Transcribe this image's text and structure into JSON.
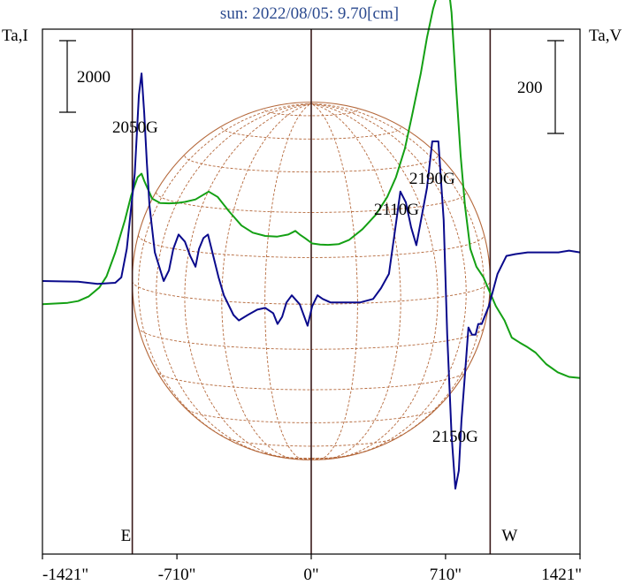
{
  "chart_data": {
    "type": "line",
    "title": "sun: 2022/08/05: 9.70[cm]",
    "ylabel_left": "Ta,I",
    "ylabel_right": "Ta,V",
    "scale_left": "2000",
    "scale_right": "200",
    "xlim": [
      -1421,
      1421
    ],
    "x_ticks": [
      "-1421\"",
      "-710\"",
      "0\"",
      "710\"",
      "1421\""
    ],
    "x_tick_values": [
      -1421,
      -710,
      0,
      710,
      1421
    ],
    "limb_markers": [
      {
        "label": "E",
        "x": -946
      },
      {
        "label": "W",
        "x": 946
      }
    ],
    "solar_radius": 946,
    "annotations": [
      {
        "text": "2050G",
        "x": -897,
        "series": "I"
      },
      {
        "text": "2110G",
        "x": 470,
        "series": "V"
      },
      {
        "text": "2190G",
        "x": 633,
        "series": "V"
      },
      {
        "text": "2150G",
        "x": 787,
        "series": "V"
      }
    ],
    "series": [
      {
        "color": "#14a014",
        "x": [
          -1421,
          -1288,
          -1232,
          -1176,
          -1120,
          -1082,
          -1036,
          -985,
          -951,
          -918,
          -897,
          -883,
          -841,
          -799,
          -752,
          -710,
          -668,
          -612,
          -542,
          -495,
          -435,
          -369,
          -309,
          -243,
          -182,
          -121,
          -84,
          -61,
          -33,
          5,
          47,
          89,
          145,
          201,
          271,
          341,
          402,
          448,
          495,
          532,
          579,
          612,
          644,
          672,
          700,
          719,
          742,
          766,
          790,
          813,
          841,
          873,
          911,
          939,
          976,
          1022,
          1060,
          1102,
          1144,
          1186,
          1242,
          1303,
          1363,
          1421
        ],
        "y": [
          -650,
          -610,
          -560,
          -430,
          -180,
          130,
          800,
          1700,
          2400,
          2900,
          3000,
          2800,
          2300,
          2180,
          2170,
          2180,
          2210,
          2280,
          2500,
          2350,
          1950,
          1550,
          1350,
          1260,
          1240,
          1300,
          1400,
          1300,
          1200,
          1050,
          1020,
          1010,
          1030,
          1150,
          1450,
          1850,
          2350,
          2900,
          3700,
          4600,
          5800,
          6800,
          7600,
          8100,
          8600,
          8550,
          7500,
          5400,
          3500,
          2100,
          900,
          400,
          100,
          -250,
          -700,
          -1100,
          -1580,
          -1720,
          -1850,
          -2000,
          -2320,
          -2550,
          -2680,
          -2710
        ]
      },
      {
        "color": "#0a0a8c",
        "x": [
          -1421,
          -1232,
          -1130,
          -1036,
          -1004,
          -975,
          -933,
          -911,
          -897,
          -883,
          -869,
          -855,
          -827,
          -780,
          -752,
          -729,
          -701,
          -668,
          -640,
          -612,
          -593,
          -570,
          -546,
          -518,
          -490,
          -462,
          -411,
          -383,
          -336,
          -285,
          -243,
          -201,
          -178,
          -154,
          -131,
          -103,
          -61,
          -19,
          5,
          33,
          61,
          103,
          145,
          201,
          257,
          327,
          369,
          411,
          448,
          471,
          500,
          528,
          556,
          584,
          612,
          640,
          672,
          700,
          719,
          742,
          762,
          780,
          794,
          813,
          831,
          850,
          869,
          883,
          901,
          939,
          985,
          1032,
          1078,
          1144,
          1232,
          1307,
          1363,
          1421
        ],
        "y": [
          0,
          -20,
          -80,
          -50,
          100,
          900,
          3000,
          5200,
          5800,
          4700,
          3300,
          2100,
          800,
          0,
          300,
          900,
          1300,
          1100,
          700,
          400,
          900,
          1200,
          1300,
          700,
          100,
          -400,
          -950,
          -1100,
          -950,
          -800,
          -750,
          -900,
          -1200,
          -1000,
          -600,
          -400,
          -650,
          -1250,
          -700,
          -400,
          -500,
          -600,
          -600,
          -600,
          -600,
          -500,
          -200,
          200,
          1600,
          2500,
          2200,
          1500,
          1000,
          1800,
          2600,
          3900,
          3900,
          1700,
          -1500,
          -4300,
          -5800,
          -5300,
          -3900,
          -2600,
          -1300,
          -1500,
          -1500,
          -1200,
          -1200,
          -700,
          200,
          700,
          750,
          800,
          800,
          800,
          850,
          800
        ]
      }
    ],
    "grid": false
  }
}
